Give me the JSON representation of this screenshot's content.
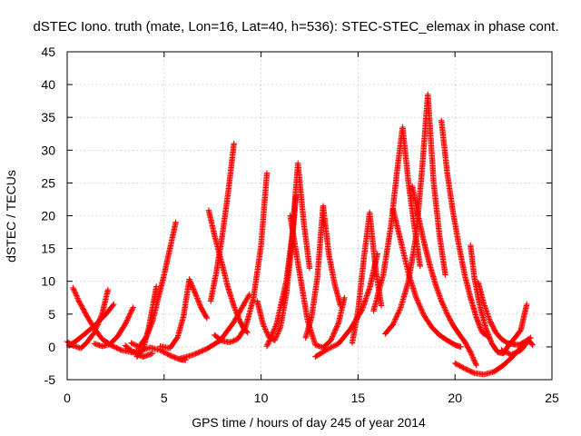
{
  "chart_data": {
    "type": "scatter",
    "title": "dSTEC Iono. truth (mate, Lon=16, Lat=40, h=536): STEC-STEC_elemax in phase cont.",
    "xlabel": "GPS time / hours of day 245 of year 2014",
    "ylabel": "dSTEC  / TECUs",
    "xlim": [
      0,
      25
    ],
    "ylim": [
      -5,
      45
    ],
    "xticks": [
      0,
      5,
      10,
      15,
      20,
      25
    ],
    "yticks": [
      -5,
      0,
      5,
      10,
      15,
      20,
      25,
      30,
      35,
      40,
      45
    ],
    "grid": true,
    "marker": "+",
    "color": "#ff0000",
    "series": [
      {
        "x": [
          0.0,
          0.3,
          0.7,
          1.0,
          1.4,
          1.8,
          2.1
        ],
        "y": [
          0.8,
          0.2,
          -0.2,
          0.6,
          2.2,
          5.0,
          8.7
        ]
      },
      {
        "x": [
          0.3,
          0.6,
          1.0,
          1.4,
          1.8,
          2.3,
          2.8,
          3.3,
          3.8,
          4.3,
          4.8,
          5.3,
          5.8,
          6.1
        ],
        "y": [
          9.0,
          7.0,
          4.8,
          2.8,
          1.2,
          0.2,
          -0.5,
          -0.8,
          -0.5,
          -0.1,
          -0.5,
          -1.3,
          -1.9,
          -2.0
        ]
      },
      {
        "x": [
          0.1,
          0.5,
          1.0,
          1.5,
          2.0,
          2.4
        ],
        "y": [
          0.2,
          1.0,
          2.2,
          3.5,
          5.0,
          6.5
        ]
      },
      {
        "x": [
          1.4,
          1.8,
          2.2,
          2.6,
          3.0,
          3.4
        ],
        "y": [
          0.5,
          0.1,
          0.4,
          1.6,
          3.5,
          6.0
        ]
      },
      {
        "x": [
          3.3,
          3.7,
          4.1,
          4.4,
          4.7,
          5.0,
          5.3,
          5.6
        ],
        "y": [
          0.6,
          0.0,
          1.6,
          3.9,
          7.5,
          11.0,
          15.0,
          19.0
        ]
      },
      {
        "x": [
          3.0,
          3.4,
          3.9,
          4.4
        ],
        "y": [
          0.2,
          -0.8,
          -1.5,
          -1.0
        ]
      },
      {
        "x": [
          3.6,
          3.9,
          4.2,
          4.6
        ],
        "y": [
          -1.5,
          -0.5,
          2.8,
          9.2
        ]
      },
      {
        "x": [
          4.8,
          5.3,
          5.7,
          6.0,
          6.3,
          6.6,
          6.9,
          7.2
        ],
        "y": [
          0.1,
          -0.2,
          1.5,
          4.7,
          10.3,
          8.2,
          6.0,
          4.4
        ]
      },
      {
        "x": [
          5.8,
          6.5,
          7.2,
          7.9,
          8.6,
          9.4
        ],
        "y": [
          -1.8,
          -1.2,
          -0.3,
          1.0,
          3.8,
          8.0
        ]
      },
      {
        "x": [
          7.3,
          7.6,
          8.0,
          8.3,
          8.6,
          8.9,
          9.1,
          9.3
        ],
        "y": [
          20.8,
          17.0,
          12.5,
          9.0,
          6.2,
          4.0,
          2.8,
          2.2
        ]
      },
      {
        "x": [
          7.4,
          7.7,
          8.0,
          8.3,
          8.6
        ],
        "y": [
          7.0,
          11.5,
          17.0,
          23.5,
          31.0
        ]
      },
      {
        "x": [
          7.6,
          8.0,
          8.4,
          8.8,
          9.2,
          9.6,
          10.0,
          10.3
        ],
        "y": [
          1.8,
          0.9,
          0.7,
          1.2,
          3.0,
          7.3,
          15.5,
          26.5
        ]
      },
      {
        "x": [
          9.8,
          10.1,
          10.4,
          10.7,
          11.0,
          11.3,
          11.6,
          11.8
        ],
        "y": [
          7.0,
          3.5,
          1.5,
          1.0,
          3.0,
          8.0,
          16.0,
          23.0
        ]
      },
      {
        "x": [
          10.3,
          10.8,
          11.3,
          11.6,
          11.9,
          12.2,
          12.5
        ],
        "y": [
          0.1,
          3.5,
          10.0,
          17.0,
          28.0,
          19.0,
          12.0
        ]
      },
      {
        "x": [
          11.5,
          12.0,
          12.4,
          12.8,
          13.2,
          13.6,
          14.0,
          14.3
        ],
        "y": [
          20.0,
          11.0,
          4.0,
          0.3,
          -0.1,
          1.0,
          3.7,
          7.5
        ]
      },
      {
        "x": [
          12.3,
          12.6,
          12.9,
          13.2,
          13.5,
          13.8,
          14.1
        ],
        "y": [
          1.4,
          4.5,
          10.5,
          21.5,
          14.0,
          9.5,
          6.2
        ]
      },
      {
        "x": [
          12.8,
          13.4,
          14.0,
          14.6,
          15.2,
          15.6,
          16.0
        ],
        "y": [
          -1.5,
          -0.4,
          0.5,
          2.7,
          5.6,
          9.0,
          14.2
        ]
      },
      {
        "x": [
          14.7,
          15.0,
          15.3,
          15.6,
          15.9,
          16.2
        ],
        "y": [
          0.6,
          5.5,
          13.5,
          20.5,
          12.0,
          6.3
        ]
      },
      {
        "x": [
          15.8,
          16.3,
          16.7,
          17.0,
          17.3,
          17.6,
          17.9,
          18.2
        ],
        "y": [
          5.5,
          11.0,
          18.5,
          26.5,
          33.5,
          25.0,
          18.5,
          12.3
        ]
      },
      {
        "x": [
          16.8,
          17.2,
          17.6,
          18.0,
          18.4,
          18.8,
          19.2,
          19.6,
          20.0,
          20.3
        ],
        "y": [
          21.0,
          16.2,
          11.2,
          7.5,
          4.8,
          3.0,
          1.8,
          1.0,
          0.3,
          0.0
        ]
      },
      {
        "x": [
          16.4,
          16.8,
          17.2,
          17.6,
          18.0,
          18.3,
          18.6,
          18.9,
          19.2,
          19.5
        ],
        "y": [
          2.0,
          3.4,
          6.0,
          10.0,
          17.0,
          27.0,
          38.5,
          25.0,
          17.0,
          11.0
        ]
      },
      {
        "x": [
          17.8,
          18.1,
          18.4,
          18.7,
          19.0,
          19.3,
          19.6,
          19.9,
          20.2,
          20.5,
          20.8,
          21.1
        ],
        "y": [
          24.5,
          20.0,
          16.0,
          12.5,
          9.5,
          7.0,
          5.0,
          3.3,
          2.0,
          0.8,
          -0.8,
          -2.8
        ]
      },
      {
        "x": [
          19.3,
          19.6,
          19.9,
          20.2,
          20.5,
          20.8,
          21.1,
          21.4,
          21.7
        ],
        "y": [
          34.5,
          26.5,
          20.5,
          15.5,
          11.0,
          7.5,
          4.5,
          2.2,
          1.6
        ]
      },
      {
        "x": [
          20.8,
          21.0,
          21.3,
          21.6,
          21.9,
          22.2,
          22.5,
          22.8,
          23.1,
          23.4,
          23.7
        ],
        "y": [
          15.5,
          10.5,
          6.0,
          2.8,
          0.5,
          -0.8,
          -1.0,
          0.4,
          1.4,
          2.6,
          6.5
        ]
      },
      {
        "x": [
          20.0,
          20.5,
          21.0,
          21.5,
          22.0,
          22.5,
          23.0,
          23.5
        ],
        "y": [
          -2.5,
          -3.3,
          -4.0,
          -4.2,
          -3.8,
          -2.8,
          -1.4,
          0.2
        ]
      },
      {
        "x": [
          21.2,
          21.5,
          21.8,
          22.1,
          22.4,
          22.7,
          23.0,
          23.3,
          23.6,
          23.9
        ],
        "y": [
          9.8,
          6.5,
          4.0,
          2.2,
          1.2,
          0.6,
          0.4,
          0.3,
          0.8,
          1.4
        ]
      },
      {
        "x": [
          22.4,
          22.9,
          23.4,
          23.8,
          24.0
        ],
        "y": [
          -0.5,
          -1.2,
          -0.5,
          1.0,
          0.3
        ]
      }
    ]
  }
}
